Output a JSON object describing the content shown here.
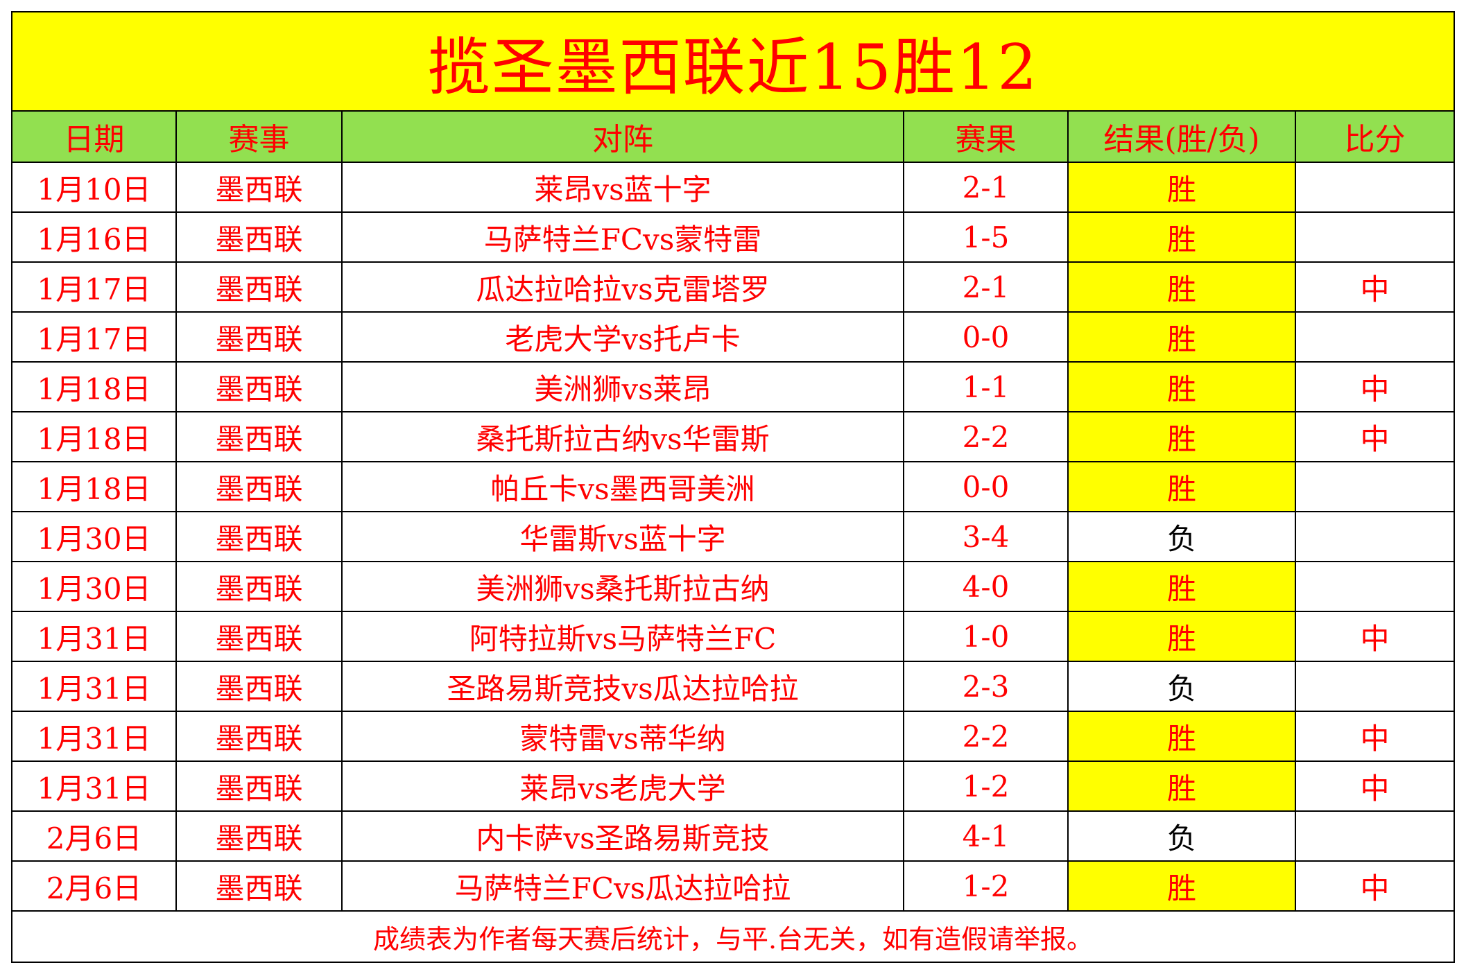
{
  "title": "揽圣墨西联近15胜12",
  "headers": [
    "日期",
    "赛事",
    "对阵",
    "赛果",
    "结果(胜/负)",
    "比分"
  ],
  "colors": {
    "title_bg": "#ffff00",
    "header_bg": "#92e050",
    "text": "#ff0000",
    "win_bg": "#ffff00"
  },
  "rows": [
    {
      "date": "1月10日",
      "league": "墨西联",
      "match": "莱昂vs蓝十字",
      "score": "2-1",
      "result": "胜",
      "mark": ""
    },
    {
      "date": "1月16日",
      "league": "墨西联",
      "match": "马萨特兰FCvs蒙特雷",
      "score": "1-5",
      "result": "胜",
      "mark": ""
    },
    {
      "date": "1月17日",
      "league": "墨西联",
      "match": "瓜达拉哈拉vs克雷塔罗",
      "score": "2-1",
      "result": "胜",
      "mark": "中"
    },
    {
      "date": "1月17日",
      "league": "墨西联",
      "match": "老虎大学vs托卢卡",
      "score": "0-0",
      "result": "胜",
      "mark": ""
    },
    {
      "date": "1月18日",
      "league": "墨西联",
      "match": "美洲狮vs莱昂",
      "score": "1-1",
      "result": "胜",
      "mark": "中"
    },
    {
      "date": "1月18日",
      "league": "墨西联",
      "match": "桑托斯拉古纳vs华雷斯",
      "score": "2-2",
      "result": "胜",
      "mark": "中"
    },
    {
      "date": "1月18日",
      "league": "墨西联",
      "match": "帕丘卡vs墨西哥美洲",
      "score": "0-0",
      "result": "胜",
      "mark": ""
    },
    {
      "date": "1月30日",
      "league": "墨西联",
      "match": "华雷斯vs蓝十字",
      "score": "3-4",
      "result": "负",
      "mark": ""
    },
    {
      "date": "1月30日",
      "league": "墨西联",
      "match": "美洲狮vs桑托斯拉古纳",
      "score": "4-0",
      "result": "胜",
      "mark": ""
    },
    {
      "date": "1月31日",
      "league": "墨西联",
      "match": "阿特拉斯vs马萨特兰FC",
      "score": "1-0",
      "result": "胜",
      "mark": "中"
    },
    {
      "date": "1月31日",
      "league": "墨西联",
      "match": "圣路易斯竞技vs瓜达拉哈拉",
      "score": "2-3",
      "result": "负",
      "mark": ""
    },
    {
      "date": "1月31日",
      "league": "墨西联",
      "match": "蒙特雷vs蒂华纳",
      "score": "2-2",
      "result": "胜",
      "mark": "中"
    },
    {
      "date": "1月31日",
      "league": "墨西联",
      "match": "莱昂vs老虎大学",
      "score": "1-2",
      "result": "胜",
      "mark": "中"
    },
    {
      "date": "2月6日",
      "league": "墨西联",
      "match": "内卡萨vs圣路易斯竞技",
      "score": "4-1",
      "result": "负",
      "mark": ""
    },
    {
      "date": "2月6日",
      "league": "墨西联",
      "match": "马萨特兰FCvs瓜达拉哈拉",
      "score": "1-2",
      "result": "胜",
      "mark": "中"
    }
  ],
  "footer": "成绩表为作者每天赛后统计，与平.台无关，如有造假请举报。"
}
